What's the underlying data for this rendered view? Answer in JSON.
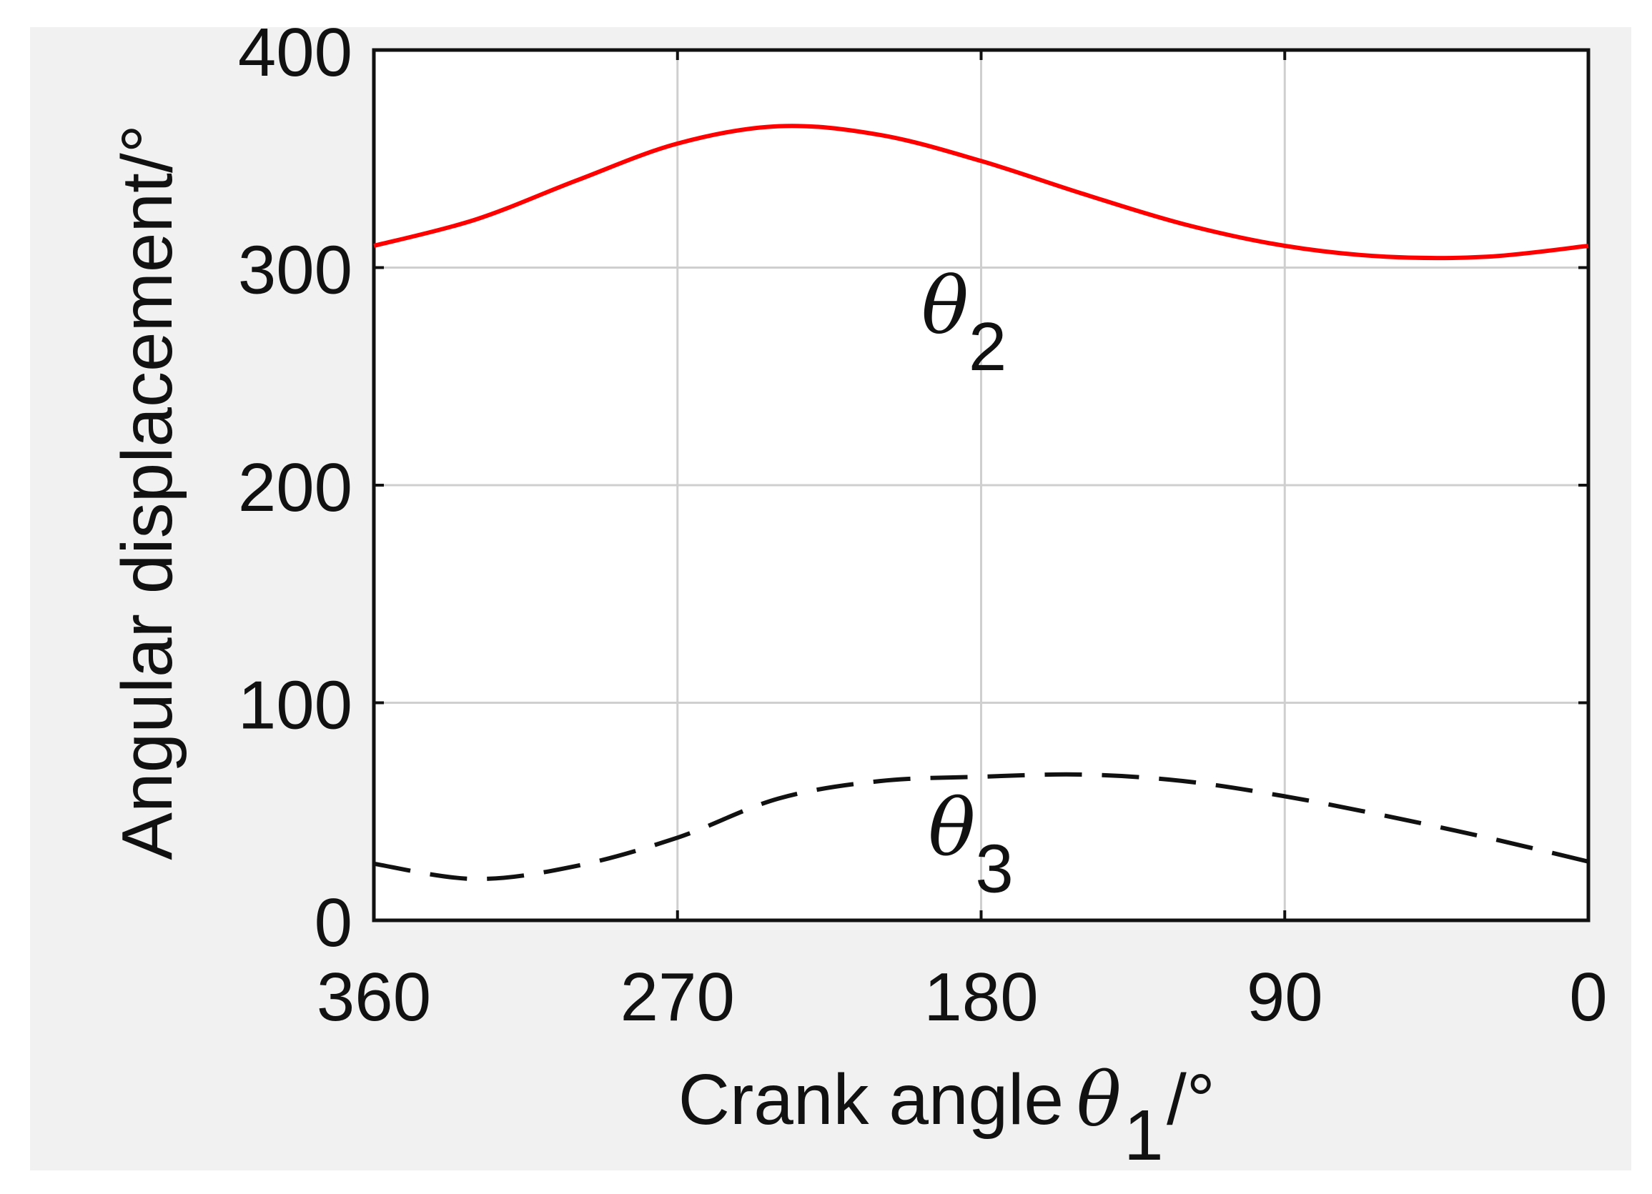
{
  "chart_data": {
    "type": "line",
    "xlabel": "Crank angle",
    "xlabel_symbol": "θ",
    "xlabel_subscript": "1",
    "xlabel_unit": "/°",
    "ylabel": "Angular displacement/°",
    "xlim": [
      360,
      0
    ],
    "x_reversed": true,
    "ylim": [
      0,
      400
    ],
    "xticks": [
      "360",
      "270",
      "180",
      "90",
      "0"
    ],
    "yticks": [
      "0",
      "100",
      "200",
      "300",
      "400"
    ],
    "grid": true,
    "series": [
      {
        "name": "θ2",
        "name_symbol": "θ",
        "name_subscript": "2",
        "style": "solid",
        "color": "#ff0000",
        "x": [
          360,
          330,
          300,
          270,
          240,
          210,
          180,
          150,
          120,
          90,
          60,
          30,
          0
        ],
        "y": [
          310,
          322,
          340,
          357,
          365,
          361,
          349,
          334,
          320,
          310,
          305,
          305,
          310
        ]
      },
      {
        "name": "θ3",
        "name_symbol": "θ",
        "name_subscript": "3",
        "style": "dashed",
        "color": "#111111",
        "x": [
          360,
          330,
          300,
          270,
          240,
          210,
          180,
          150,
          120,
          90,
          60,
          30,
          0
        ],
        "y": [
          26,
          19,
          25,
          38,
          56,
          64,
          66,
          67,
          64,
          57,
          48,
          38,
          27
        ]
      }
    ],
    "annotations": [
      {
        "series": "θ2",
        "x": 185,
        "y": 270
      },
      {
        "series": "θ3",
        "x": 183,
        "y": 30
      }
    ]
  }
}
